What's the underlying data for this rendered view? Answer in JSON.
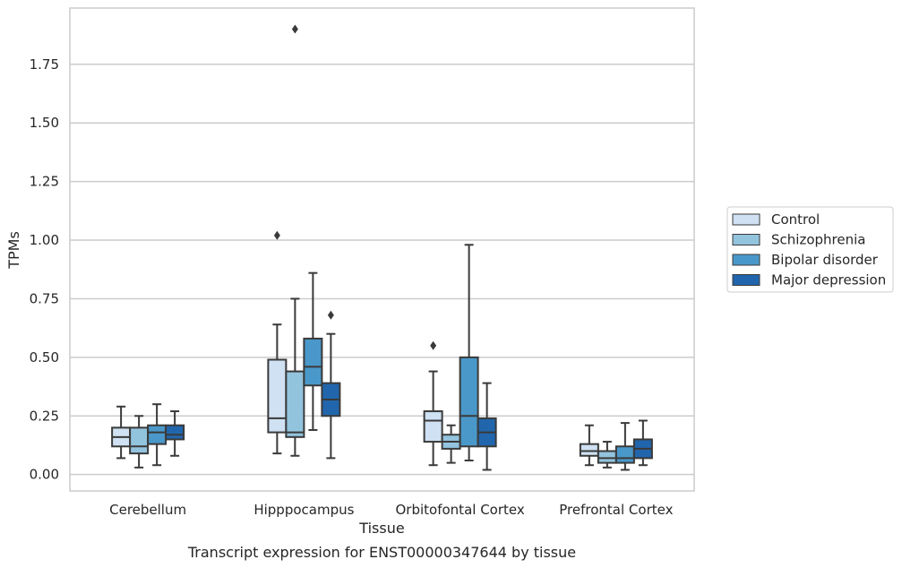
{
  "chart_data": {
    "type": "box",
    "title": "",
    "caption": "Transcript expression for ENST00000347644 by tissue",
    "xlabel": "Tissue",
    "ylabel": "TPMs",
    "ylim": [
      -0.07,
      1.99
    ],
    "yticks": [
      "0.00",
      "0.25",
      "0.50",
      "0.75",
      "1.00",
      "1.25",
      "1.50",
      "1.75"
    ],
    "ytick_values": [
      0,
      0.25,
      0.5,
      0.75,
      1.0,
      1.25,
      1.5,
      1.75
    ],
    "grid": "horizontal",
    "legend_position": "right",
    "categories": [
      "Cerebellum",
      "Hipppocampus",
      "Orbitofontal Cortex",
      "Prefrontal Cortex"
    ],
    "series": [
      {
        "name": "Control",
        "color": "#cfe1f2",
        "boxes": [
          {
            "whislo": 0.07,
            "q1": 0.12,
            "med": 0.16,
            "q3": 0.2,
            "whishi": 0.29,
            "fliers": []
          },
          {
            "whislo": 0.09,
            "q1": 0.18,
            "med": 0.24,
            "q3": 0.49,
            "whishi": 0.64,
            "fliers": [
              1.02
            ]
          },
          {
            "whislo": 0.04,
            "q1": 0.14,
            "med": 0.23,
            "q3": 0.27,
            "whishi": 0.44,
            "fliers": [
              0.55
            ]
          },
          {
            "whislo": 0.04,
            "q1": 0.08,
            "med": 0.1,
            "q3": 0.13,
            "whishi": 0.21,
            "fliers": []
          }
        ]
      },
      {
        "name": "Schizophrenia",
        "color": "#93c4de",
        "boxes": [
          {
            "whislo": 0.03,
            "q1": 0.09,
            "med": 0.12,
            "q3": 0.2,
            "whishi": 0.25,
            "fliers": []
          },
          {
            "whislo": 0.08,
            "q1": 0.16,
            "med": 0.18,
            "q3": 0.44,
            "whishi": 0.75,
            "fliers": [
              1.9
            ]
          },
          {
            "whislo": 0.05,
            "q1": 0.11,
            "med": 0.14,
            "q3": 0.17,
            "whishi": 0.21,
            "fliers": []
          },
          {
            "whislo": 0.03,
            "q1": 0.05,
            "med": 0.07,
            "q3": 0.1,
            "whishi": 0.14,
            "fliers": []
          }
        ]
      },
      {
        "name": "Bipolar disorder",
        "color": "#4a98c9",
        "boxes": [
          {
            "whislo": 0.04,
            "q1": 0.13,
            "med": 0.18,
            "q3": 0.21,
            "whishi": 0.3,
            "fliers": []
          },
          {
            "whislo": 0.19,
            "q1": 0.38,
            "med": 0.46,
            "q3": 0.58,
            "whishi": 0.86,
            "fliers": []
          },
          {
            "whislo": 0.06,
            "q1": 0.12,
            "med": 0.25,
            "q3": 0.5,
            "whishi": 0.98,
            "fliers": []
          },
          {
            "whislo": 0.02,
            "q1": 0.05,
            "med": 0.07,
            "q3": 0.12,
            "whishi": 0.22,
            "fliers": []
          }
        ]
      },
      {
        "name": "Major depression",
        "color": "#2166ac",
        "boxes": [
          {
            "whislo": 0.08,
            "q1": 0.15,
            "med": 0.17,
            "q3": 0.21,
            "whishi": 0.27,
            "fliers": []
          },
          {
            "whislo": 0.07,
            "q1": 0.25,
            "med": 0.32,
            "q3": 0.39,
            "whishi": 0.6,
            "fliers": [
              0.68
            ]
          },
          {
            "whislo": 0.02,
            "q1": 0.12,
            "med": 0.18,
            "q3": 0.24,
            "whishi": 0.39,
            "fliers": []
          },
          {
            "whislo": 0.04,
            "q1": 0.07,
            "med": 0.11,
            "q3": 0.15,
            "whishi": 0.23,
            "fliers": []
          }
        ]
      }
    ]
  }
}
